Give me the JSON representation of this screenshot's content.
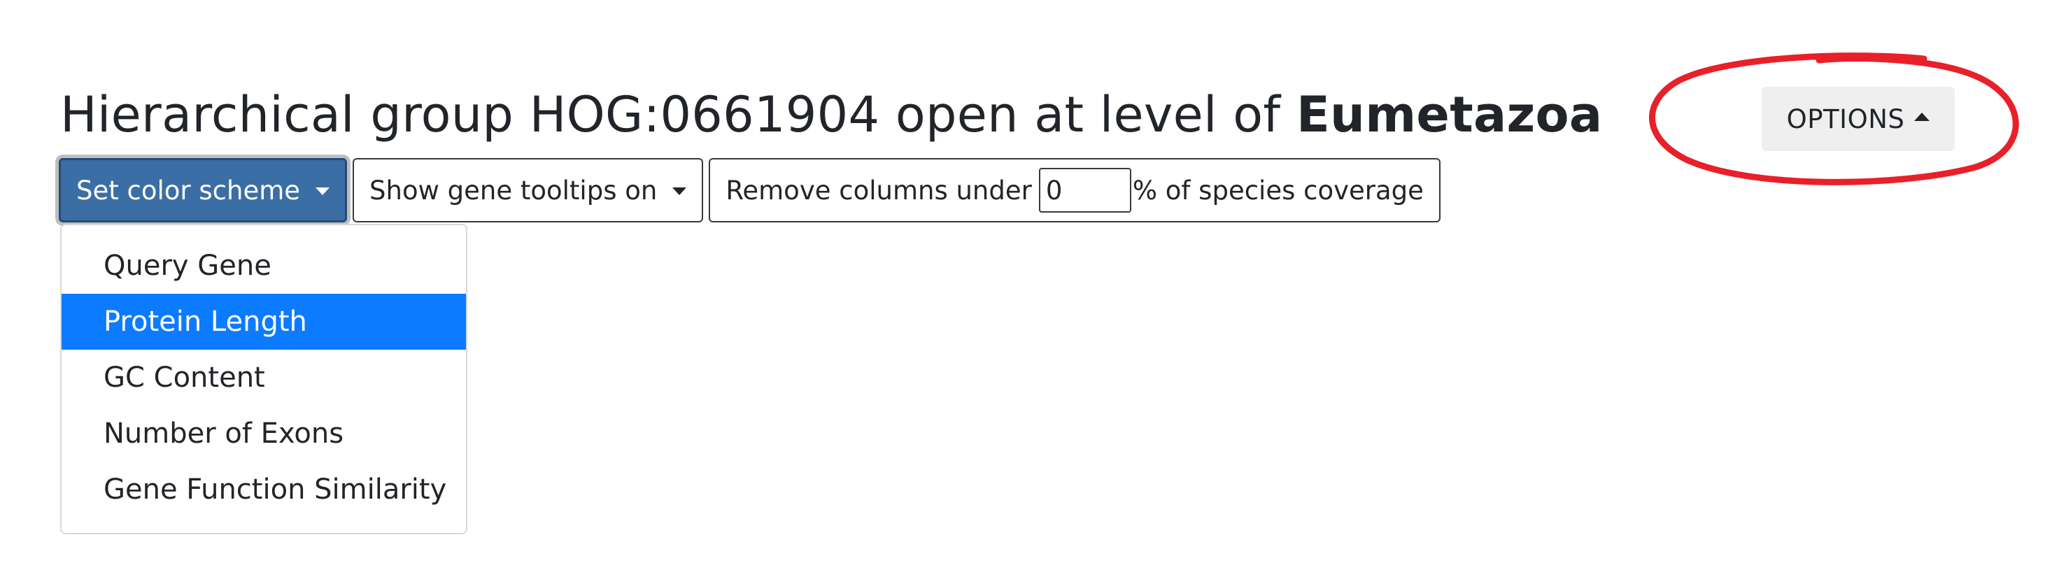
{
  "header": {
    "title_prefix": "Hierarchical group HOG:0661904 open at level of ",
    "title_level": "Eumetazoa"
  },
  "toolbar": {
    "color_scheme_label": "Set color scheme",
    "tooltips_label": "Show gene tooltips on",
    "coverage_prefix": "Remove columns under",
    "coverage_value": "0",
    "coverage_suffix": "% of species coverage"
  },
  "color_menu": {
    "items": [
      {
        "label": "Query Gene"
      },
      {
        "label": "Protein Length"
      },
      {
        "label": "GC Content"
      },
      {
        "label": "Number of Exons"
      },
      {
        "label": "Gene Function Similarity"
      }
    ],
    "selected": "Protein Length"
  },
  "options": {
    "label": "OPTIONS"
  },
  "colors": {
    "primary_button": "#3b6ea5",
    "selected_item": "#0d7bff",
    "annotation": "#e8202a"
  }
}
